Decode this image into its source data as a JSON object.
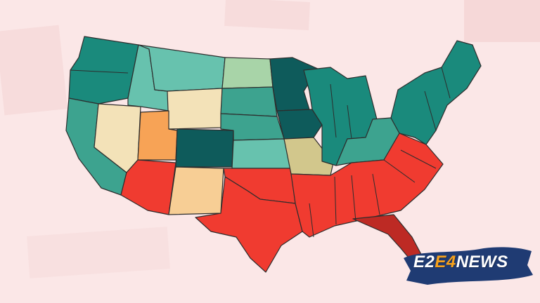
{
  "map": {
    "colors": {
      "background": "#fbe7e7",
      "dark_teal": "#0e5b5b",
      "teal": "#1a8a7c",
      "mid_teal": "#3da38f",
      "light_teal": "#67c2ae",
      "pale_green": "#a8d4a8",
      "cream": "#f3e2b8",
      "sand": "#f7ce95",
      "khaki": "#d2c78c",
      "orange": "#f7a356",
      "red": "#f03b30",
      "dark_red": "#bd2a24",
      "outline": "#2d2d2d"
    },
    "regions": [
      {
        "name": "west-coast-north",
        "color": "teal"
      },
      {
        "name": "california",
        "color": "mid_teal"
      },
      {
        "name": "nevada",
        "color": "cream"
      },
      {
        "name": "idaho",
        "color": "light_teal"
      },
      {
        "name": "montana",
        "color": "light_teal"
      },
      {
        "name": "wyoming",
        "color": "cream"
      },
      {
        "name": "utah",
        "color": "orange"
      },
      {
        "name": "colorado",
        "color": "dark_teal"
      },
      {
        "name": "arizona",
        "color": "red"
      },
      {
        "name": "new-mexico",
        "color": "sand"
      },
      {
        "name": "north-dakota",
        "color": "pale_green"
      },
      {
        "name": "south-dakota",
        "color": "mid_teal"
      },
      {
        "name": "nebraska",
        "color": "mid_teal"
      },
      {
        "name": "kansas",
        "color": "light_teal"
      },
      {
        "name": "oklahoma",
        "color": "red"
      },
      {
        "name": "texas",
        "color": "red"
      },
      {
        "name": "minnesota",
        "color": "dark_teal"
      },
      {
        "name": "iowa",
        "color": "dark_teal"
      },
      {
        "name": "missouri",
        "color": "khaki"
      },
      {
        "name": "great-lakes",
        "color": "teal"
      },
      {
        "name": "ohio",
        "color": "mid_teal"
      },
      {
        "name": "northeast",
        "color": "teal"
      },
      {
        "name": "south",
        "color": "red"
      },
      {
        "name": "florida",
        "color": "dark_red"
      }
    ]
  },
  "logo": {
    "part1": "E2",
    "part2": "E4",
    "part3": "NEWS",
    "brush_color": "#1f3b73",
    "accent_color": "#f7a21c"
  }
}
